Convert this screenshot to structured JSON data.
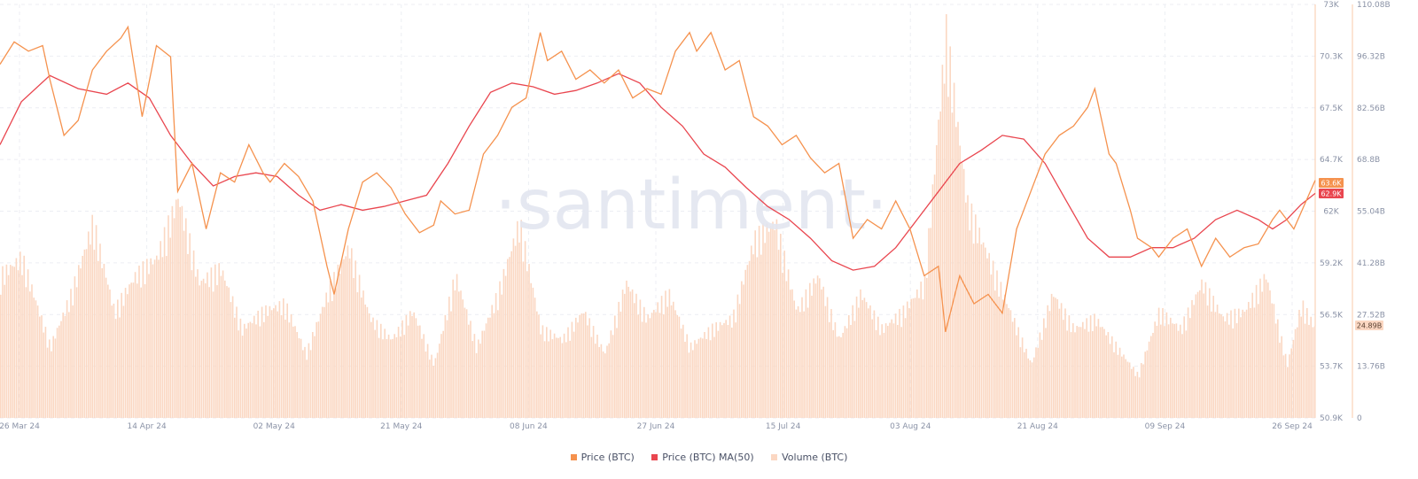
{
  "watermark": "·santiment·",
  "chart_data": {
    "type": "line",
    "x_range": [
      "2024-03-25",
      "2024-09-26"
    ],
    "x_ticks": [
      "26 Mar 24",
      "14 Apr 24",
      "02 May 24",
      "21 May 24",
      "08 Jun 24",
      "27 Jun 24",
      "15 Jul 24",
      "03 Aug 24",
      "21 Aug 24",
      "09 Sep 24",
      "26 Sep 24"
    ],
    "price_axis": {
      "ticks": [
        "50.9K",
        "53.7K",
        "56.5K",
        "59.2K",
        "62K",
        "64.7K",
        "67.5K",
        "70.3K",
        "73K"
      ],
      "ylim": [
        50900,
        73000
      ]
    },
    "volume_axis": {
      "ticks": [
        "0",
        "13.76B",
        "27.52B",
        "41.28B",
        "55.04B",
        "68.8B",
        "82.56B",
        "96.32B",
        "110.08B"
      ],
      "ylim": [
        0,
        110080000000
      ]
    },
    "current_labels": {
      "price": "63.6K",
      "ma": "62.9K",
      "volume": "24.89B"
    },
    "colors": {
      "price": "#f5924e",
      "ma": "#e9464f",
      "volume": "#fbd7c2"
    },
    "series": [
      {
        "name": "Price (BTC)",
        "color": "#f5924e",
        "points": [
          [
            "2024-03-25",
            69800
          ],
          [
            "2024-03-27",
            71000
          ],
          [
            "2024-03-29",
            70500
          ],
          [
            "2024-03-31",
            70800
          ],
          [
            "2024-04-01",
            69000
          ],
          [
            "2024-04-03",
            66000
          ],
          [
            "2024-04-05",
            66800
          ],
          [
            "2024-04-07",
            69500
          ],
          [
            "2024-04-09",
            70500
          ],
          [
            "2024-04-11",
            71200
          ],
          [
            "2024-04-12",
            71800
          ],
          [
            "2024-04-14",
            67000
          ],
          [
            "2024-04-16",
            70800
          ],
          [
            "2024-04-18",
            70200
          ],
          [
            "2024-04-19",
            63000
          ],
          [
            "2024-04-21",
            64500
          ],
          [
            "2024-04-23",
            61000
          ],
          [
            "2024-04-25",
            64000
          ],
          [
            "2024-04-27",
            63500
          ],
          [
            "2024-04-29",
            65500
          ],
          [
            "2024-05-01",
            64000
          ],
          [
            "2024-05-02",
            63500
          ],
          [
            "2024-05-04",
            64500
          ],
          [
            "2024-05-06",
            63800
          ],
          [
            "2024-05-08",
            62500
          ],
          [
            "2024-05-10",
            59000
          ],
          [
            "2024-05-11",
            57500
          ],
          [
            "2024-05-13",
            61000
          ],
          [
            "2024-05-15",
            63500
          ],
          [
            "2024-05-17",
            64000
          ],
          [
            "2024-05-19",
            63200
          ],
          [
            "2024-05-21",
            61800
          ],
          [
            "2024-05-23",
            60800
          ],
          [
            "2024-05-25",
            61200
          ],
          [
            "2024-05-26",
            62500
          ],
          [
            "2024-05-28",
            61800
          ],
          [
            "2024-05-30",
            62000
          ],
          [
            "2024-06-01",
            65000
          ],
          [
            "2024-06-03",
            66000
          ],
          [
            "2024-06-05",
            67500
          ],
          [
            "2024-06-07",
            68000
          ],
          [
            "2024-06-09",
            71500
          ],
          [
            "2024-06-10",
            70000
          ],
          [
            "2024-06-12",
            70500
          ],
          [
            "2024-06-14",
            69000
          ],
          [
            "2024-06-16",
            69500
          ],
          [
            "2024-06-18",
            68800
          ],
          [
            "2024-06-20",
            69500
          ],
          [
            "2024-06-22",
            68000
          ],
          [
            "2024-06-24",
            68500
          ],
          [
            "2024-06-26",
            68200
          ],
          [
            "2024-06-28",
            70500
          ],
          [
            "2024-06-30",
            71500
          ],
          [
            "2024-07-01",
            70500
          ],
          [
            "2024-07-03",
            71500
          ],
          [
            "2024-07-05",
            69500
          ],
          [
            "2024-07-07",
            70000
          ],
          [
            "2024-07-09",
            67000
          ],
          [
            "2024-07-11",
            66500
          ],
          [
            "2024-07-13",
            65500
          ],
          [
            "2024-07-15",
            66000
          ],
          [
            "2024-07-17",
            64800
          ],
          [
            "2024-07-19",
            64000
          ],
          [
            "2024-07-21",
            64500
          ],
          [
            "2024-07-23",
            60500
          ],
          [
            "2024-07-25",
            61500
          ],
          [
            "2024-07-27",
            61000
          ],
          [
            "2024-07-29",
            62500
          ],
          [
            "2024-07-31",
            61000
          ],
          [
            "2024-08-02",
            58500
          ],
          [
            "2024-08-04",
            59000
          ],
          [
            "2024-08-05",
            55500
          ],
          [
            "2024-08-07",
            58500
          ],
          [
            "2024-08-09",
            57000
          ],
          [
            "2024-08-11",
            57500
          ],
          [
            "2024-08-13",
            56500
          ],
          [
            "2024-08-15",
            61000
          ],
          [
            "2024-08-17",
            63000
          ],
          [
            "2024-08-19",
            65000
          ],
          [
            "2024-08-21",
            66000
          ],
          [
            "2024-08-23",
            66500
          ],
          [
            "2024-08-25",
            67500
          ],
          [
            "2024-08-26",
            68500
          ],
          [
            "2024-08-28",
            65000
          ],
          [
            "2024-08-29",
            64500
          ],
          [
            "2024-08-31",
            62000
          ],
          [
            "2024-09-01",
            60500
          ],
          [
            "2024-09-03",
            60000
          ],
          [
            "2024-09-04",
            59500
          ],
          [
            "2024-09-06",
            60500
          ],
          [
            "2024-09-08",
            61000
          ],
          [
            "2024-09-10",
            59000
          ],
          [
            "2024-09-12",
            60500
          ],
          [
            "2024-09-14",
            59500
          ],
          [
            "2024-09-16",
            60000
          ],
          [
            "2024-09-18",
            60200
          ],
          [
            "2024-09-20",
            61500
          ],
          [
            "2024-09-21",
            62000
          ],
          [
            "2024-09-23",
            61000
          ],
          [
            "2024-09-26",
            63600
          ]
        ]
      },
      {
        "name": "Price (BTC) MA(50)",
        "color": "#e9464f",
        "points": [
          [
            "2024-03-25",
            65500
          ],
          [
            "2024-03-28",
            67800
          ],
          [
            "2024-04-01",
            69200
          ],
          [
            "2024-04-05",
            68500
          ],
          [
            "2024-04-09",
            68200
          ],
          [
            "2024-04-12",
            68800
          ],
          [
            "2024-04-15",
            68000
          ],
          [
            "2024-04-18",
            66000
          ],
          [
            "2024-04-21",
            64500
          ],
          [
            "2024-04-24",
            63300
          ],
          [
            "2024-04-27",
            63800
          ],
          [
            "2024-04-30",
            64000
          ],
          [
            "2024-05-03",
            63800
          ],
          [
            "2024-05-06",
            62800
          ],
          [
            "2024-05-09",
            62000
          ],
          [
            "2024-05-12",
            62300
          ],
          [
            "2024-05-15",
            62000
          ],
          [
            "2024-05-18",
            62200
          ],
          [
            "2024-05-21",
            62500
          ],
          [
            "2024-05-24",
            62800
          ],
          [
            "2024-05-27",
            64500
          ],
          [
            "2024-05-30",
            66500
          ],
          [
            "2024-06-02",
            68300
          ],
          [
            "2024-06-05",
            68800
          ],
          [
            "2024-06-08",
            68600
          ],
          [
            "2024-06-11",
            68200
          ],
          [
            "2024-06-14",
            68400
          ],
          [
            "2024-06-17",
            68800
          ],
          [
            "2024-06-20",
            69300
          ],
          [
            "2024-06-23",
            68800
          ],
          [
            "2024-06-26",
            67500
          ],
          [
            "2024-06-29",
            66500
          ],
          [
            "2024-07-02",
            65000
          ],
          [
            "2024-07-05",
            64300
          ],
          [
            "2024-07-08",
            63200
          ],
          [
            "2024-07-11",
            62200
          ],
          [
            "2024-07-14",
            61500
          ],
          [
            "2024-07-17",
            60500
          ],
          [
            "2024-07-20",
            59300
          ],
          [
            "2024-07-23",
            58800
          ],
          [
            "2024-07-26",
            59000
          ],
          [
            "2024-07-29",
            60000
          ],
          [
            "2024-08-01",
            61500
          ],
          [
            "2024-08-04",
            63000
          ],
          [
            "2024-08-07",
            64500
          ],
          [
            "2024-08-10",
            65200
          ],
          [
            "2024-08-13",
            66000
          ],
          [
            "2024-08-16",
            65800
          ],
          [
            "2024-08-19",
            64500
          ],
          [
            "2024-08-22",
            62500
          ],
          [
            "2024-08-25",
            60500
          ],
          [
            "2024-08-28",
            59500
          ],
          [
            "2024-08-31",
            59500
          ],
          [
            "2024-09-03",
            60000
          ],
          [
            "2024-09-06",
            60000
          ],
          [
            "2024-09-09",
            60500
          ],
          [
            "2024-09-12",
            61500
          ],
          [
            "2024-09-15",
            62000
          ],
          [
            "2024-09-18",
            61500
          ],
          [
            "2024-09-20",
            61000
          ],
          [
            "2024-09-22",
            61500
          ],
          [
            "2024-09-24",
            62300
          ],
          [
            "2024-09-26",
            62900
          ]
        ]
      },
      {
        "name": "Volume (BTC)",
        "color": "#fbd7c2",
        "axis": "volume",
        "points": [
          [
            "2024-03-25",
            40000000000
          ],
          [
            "2024-03-28",
            45000000000
          ],
          [
            "2024-04-01",
            20000000000
          ],
          [
            "2024-04-04",
            35000000000
          ],
          [
            "2024-04-07",
            55000000000
          ],
          [
            "2024-04-10",
            30000000000
          ],
          [
            "2024-04-13",
            40000000000
          ],
          [
            "2024-04-16",
            45000000000
          ],
          [
            "2024-04-19",
            62000000000
          ],
          [
            "2024-04-22",
            38000000000
          ],
          [
            "2024-04-25",
            42000000000
          ],
          [
            "2024-04-28",
            25000000000
          ],
          [
            "2024-05-01",
            30000000000
          ],
          [
            "2024-05-04",
            32000000000
          ],
          [
            "2024-05-07",
            18000000000
          ],
          [
            "2024-05-10",
            35000000000
          ],
          [
            "2024-05-13",
            48000000000
          ],
          [
            "2024-05-16",
            28000000000
          ],
          [
            "2024-05-19",
            22000000000
          ],
          [
            "2024-05-22",
            30000000000
          ],
          [
            "2024-05-25",
            15000000000
          ],
          [
            "2024-05-28",
            40000000000
          ],
          [
            "2024-05-31",
            20000000000
          ],
          [
            "2024-06-03",
            35000000000
          ],
          [
            "2024-06-06",
            55000000000
          ],
          [
            "2024-06-09",
            25000000000
          ],
          [
            "2024-06-12",
            22000000000
          ],
          [
            "2024-06-15",
            30000000000
          ],
          [
            "2024-06-18",
            18000000000
          ],
          [
            "2024-06-21",
            38000000000
          ],
          [
            "2024-06-24",
            28000000000
          ],
          [
            "2024-06-27",
            35000000000
          ],
          [
            "2024-06-30",
            20000000000
          ],
          [
            "2024-07-03",
            25000000000
          ],
          [
            "2024-07-06",
            28000000000
          ],
          [
            "2024-07-09",
            50000000000
          ],
          [
            "2024-07-12",
            55000000000
          ],
          [
            "2024-07-15",
            30000000000
          ],
          [
            "2024-07-18",
            40000000000
          ],
          [
            "2024-07-21",
            22000000000
          ],
          [
            "2024-07-24",
            35000000000
          ],
          [
            "2024-07-27",
            25000000000
          ],
          [
            "2024-07-30",
            30000000000
          ],
          [
            "2024-08-02",
            38000000000
          ],
          [
            "2024-08-05",
            108000000000
          ],
          [
            "2024-08-08",
            60000000000
          ],
          [
            "2024-08-11",
            45000000000
          ],
          [
            "2024-08-14",
            30000000000
          ],
          [
            "2024-08-17",
            15000000000
          ],
          [
            "2024-08-20",
            35000000000
          ],
          [
            "2024-08-23",
            25000000000
          ],
          [
            "2024-08-26",
            28000000000
          ],
          [
            "2024-08-29",
            20000000000
          ],
          [
            "2024-09-01",
            12000000000
          ],
          [
            "2024-09-04",
            30000000000
          ],
          [
            "2024-09-07",
            25000000000
          ],
          [
            "2024-09-10",
            38000000000
          ],
          [
            "2024-09-13",
            28000000000
          ],
          [
            "2024-09-16",
            30000000000
          ],
          [
            "2024-09-19",
            40000000000
          ],
          [
            "2024-09-22",
            15000000000
          ],
          [
            "2024-09-24",
            32000000000
          ],
          [
            "2024-09-26",
            24890000000
          ]
        ]
      }
    ]
  }
}
